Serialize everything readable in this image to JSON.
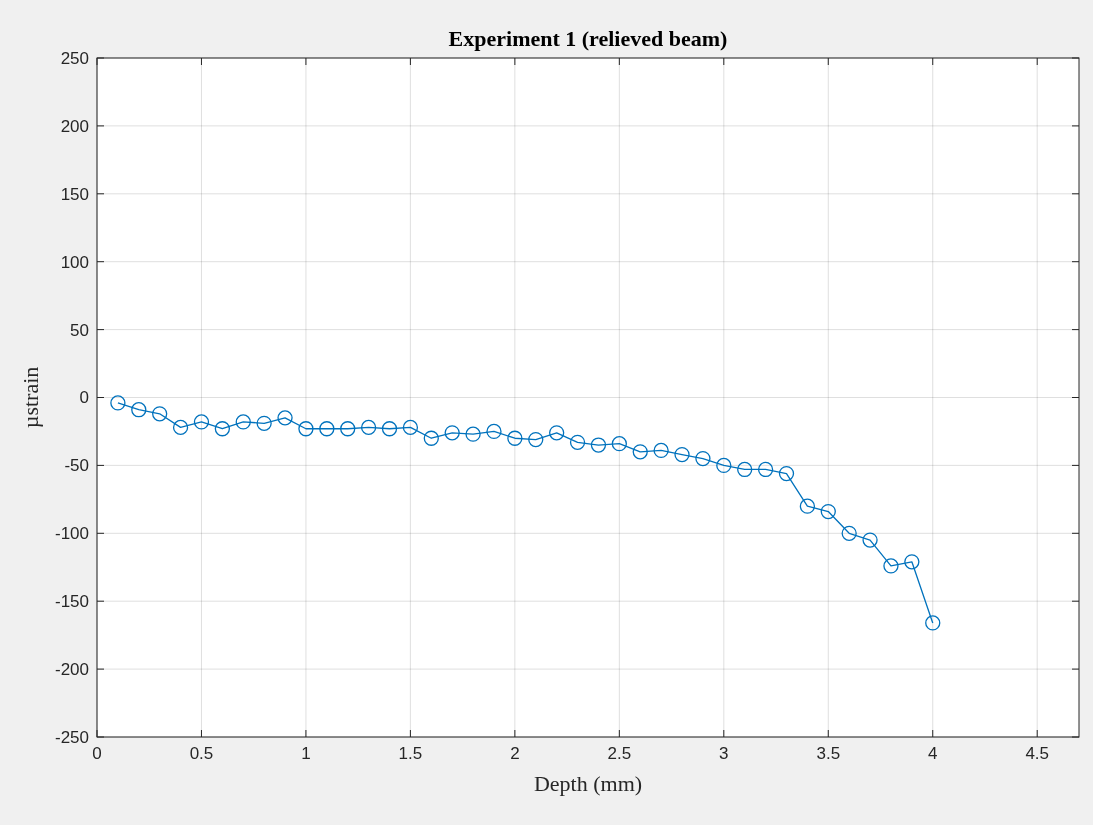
{
  "chart_data": {
    "type": "line",
    "title": "Experiment 1 (relieved beam)",
    "xlabel": "Depth (mm)",
    "ylabel": "µstrain",
    "x": [
      0.1,
      0.2,
      0.3,
      0.4,
      0.5,
      0.6,
      0.7,
      0.8,
      0.9,
      1.0,
      1.1,
      1.2,
      1.3,
      1.4,
      1.5,
      1.6,
      1.7,
      1.8,
      1.9,
      2.0,
      2.1,
      2.2,
      2.3,
      2.4,
      2.5,
      2.6,
      2.7,
      2.8,
      2.9,
      3.0,
      3.1,
      3.2,
      3.3,
      3.4,
      3.5,
      3.6,
      3.7,
      3.8,
      3.9,
      4.0
    ],
    "series": [
      {
        "color": "#0072bd",
        "values": [
          -4,
          -9,
          -12,
          -22,
          -18,
          -23,
          -18,
          -19,
          -15,
          -23,
          -23,
          -23,
          -22,
          -23,
          -22,
          -30,
          -26,
          -27,
          -25,
          -30,
          -31,
          -26,
          -33,
          -35,
          -34,
          -40,
          -39,
          -42,
          -45,
          -50,
          -53,
          -53,
          -56,
          -80,
          -84,
          -100,
          -105,
          -124,
          -121,
          -166
        ]
      }
    ],
    "xlim": [
      0,
      4.7
    ],
    "xticks": [
      0,
      0.5,
      1,
      1.5,
      2,
      2.5,
      3,
      3.5,
      4,
      4.5
    ],
    "ylim": [
      -250,
      250
    ],
    "yticks": [
      -250,
      -200,
      -150,
      -100,
      -50,
      0,
      50,
      100,
      150,
      200,
      250
    ],
    "grid": true,
    "marker": "circle",
    "line_style": "solid"
  }
}
